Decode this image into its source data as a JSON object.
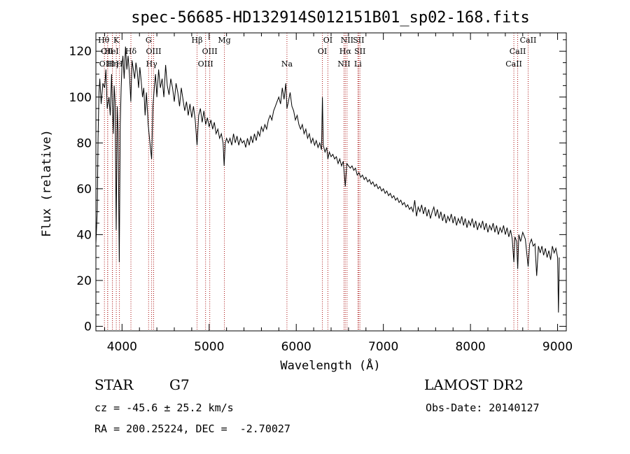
{
  "chart_data": {
    "type": "line",
    "title": "spec-56685-HD132914S012151B01_sp02-168.fits",
    "xlabel": "Wavelength (Å)",
    "ylabel": "Flux (relative)",
    "xlim": [
      3700,
      9100
    ],
    "ylim": [
      -2,
      128
    ],
    "xticks": [
      4000,
      5000,
      6000,
      7000,
      8000,
      9000
    ],
    "yticks": [
      0,
      20,
      40,
      60,
      80,
      100,
      120
    ],
    "line_color": "#000000",
    "marker_color": "#aa1111",
    "series": [
      {
        "points": [
          [
            3700,
            36
          ],
          [
            3715,
            50
          ],
          [
            3725,
            82
          ],
          [
            3735,
            102
          ],
          [
            3745,
            108
          ],
          [
            3760,
            97
          ],
          [
            3780,
            106
          ],
          [
            3800,
            104
          ],
          [
            3815,
            112
          ],
          [
            3830,
            95
          ],
          [
            3850,
            100
          ],
          [
            3865,
            92
          ],
          [
            3880,
            110
          ],
          [
            3890,
            96
          ],
          [
            3900,
            84
          ],
          [
            3910,
            105
          ],
          [
            3920,
            98
          ],
          [
            3933,
            42
          ],
          [
            3945,
            96
          ],
          [
            3955,
            85
          ],
          [
            3968,
            28
          ],
          [
            3980,
            88
          ],
          [
            3990,
            104
          ],
          [
            4000,
            114
          ],
          [
            4010,
            118
          ],
          [
            4025,
            108
          ],
          [
            4040,
            122
          ],
          [
            4055,
            112
          ],
          [
            4070,
            118
          ],
          [
            4085,
            110
          ],
          [
            4101,
            98
          ],
          [
            4115,
            116
          ],
          [
            4130,
            112
          ],
          [
            4145,
            108
          ],
          [
            4160,
            115
          ],
          [
            4175,
            111
          ],
          [
            4190,
            104
          ],
          [
            4205,
            113
          ],
          [
            4220,
            107
          ],
          [
            4235,
            100
          ],
          [
            4250,
            104
          ],
          [
            4265,
            92
          ],
          [
            4280,
            102
          ],
          [
            4300,
            88
          ],
          [
            4320,
            80
          ],
          [
            4340,
            73
          ],
          [
            4355,
            96
          ],
          [
            4370,
            104
          ],
          [
            4385,
            110
          ],
          [
            4400,
            100
          ],
          [
            4420,
            112
          ],
          [
            4440,
            104
          ],
          [
            4460,
            108
          ],
          [
            4480,
            100
          ],
          [
            4500,
            114
          ],
          [
            4520,
            105
          ],
          [
            4540,
            101
          ],
          [
            4560,
            108
          ],
          [
            4580,
            104
          ],
          [
            4600,
            98
          ],
          [
            4620,
            106
          ],
          [
            4640,
            102
          ],
          [
            4660,
            96
          ],
          [
            4680,
            104
          ],
          [
            4700,
            99
          ],
          [
            4720,
            94
          ],
          [
            4740,
            98
          ],
          [
            4760,
            92
          ],
          [
            4780,
            97
          ],
          [
            4800,
            91
          ],
          [
            4820,
            96
          ],
          [
            4840,
            90
          ],
          [
            4861,
            79
          ],
          [
            4880,
            92
          ],
          [
            4900,
            95
          ],
          [
            4920,
            89
          ],
          [
            4940,
            94
          ],
          [
            4960,
            88
          ],
          [
            4980,
            91
          ],
          [
            5000,
            87
          ],
          [
            5020,
            90
          ],
          [
            5040,
            86
          ],
          [
            5060,
            89
          ],
          [
            5080,
            84
          ],
          [
            5100,
            86
          ],
          [
            5120,
            82
          ],
          [
            5140,
            84
          ],
          [
            5160,
            80
          ],
          [
            5172,
            70
          ],
          [
            5185,
            80
          ],
          [
            5200,
            82
          ],
          [
            5220,
            80
          ],
          [
            5240,
            82
          ],
          [
            5260,
            79
          ],
          [
            5280,
            84
          ],
          [
            5300,
            80
          ],
          [
            5320,
            83
          ],
          [
            5340,
            79
          ],
          [
            5360,
            82
          ],
          [
            5380,
            80
          ],
          [
            5400,
            81
          ],
          [
            5420,
            78
          ],
          [
            5440,
            82
          ],
          [
            5460,
            79
          ],
          [
            5480,
            83
          ],
          [
            5500,
            80
          ],
          [
            5520,
            84
          ],
          [
            5540,
            81
          ],
          [
            5560,
            85
          ],
          [
            5580,
            83
          ],
          [
            5600,
            87
          ],
          [
            5620,
            85
          ],
          [
            5640,
            88
          ],
          [
            5660,
            86
          ],
          [
            5680,
            90
          ],
          [
            5700,
            92
          ],
          [
            5720,
            90
          ],
          [
            5740,
            94
          ],
          [
            5760,
            96
          ],
          [
            5780,
            98
          ],
          [
            5800,
            100
          ],
          [
            5820,
            97
          ],
          [
            5840,
            104
          ],
          [
            5860,
            99
          ],
          [
            5880,
            106
          ],
          [
            5893,
            95
          ],
          [
            5910,
            98
          ],
          [
            5930,
            102
          ],
          [
            5950,
            96
          ],
          [
            5970,
            94
          ],
          [
            5990,
            90
          ],
          [
            6010,
            92
          ],
          [
            6030,
            88
          ],
          [
            6050,
            86
          ],
          [
            6070,
            88
          ],
          [
            6090,
            84
          ],
          [
            6110,
            86
          ],
          [
            6130,
            82
          ],
          [
            6150,
            84
          ],
          [
            6170,
            80
          ],
          [
            6190,
            82
          ],
          [
            6210,
            79
          ],
          [
            6230,
            81
          ],
          [
            6250,
            78
          ],
          [
            6270,
            80
          ],
          [
            6290,
            77
          ],
          [
            6300,
            100
          ],
          [
            6310,
            79
          ],
          [
            6330,
            76
          ],
          [
            6350,
            78
          ],
          [
            6363,
            73
          ],
          [
            6380,
            76
          ],
          [
            6400,
            74
          ],
          [
            6420,
            75
          ],
          [
            6440,
            73
          ],
          [
            6460,
            74
          ],
          [
            6480,
            71
          ],
          [
            6500,
            73
          ],
          [
            6520,
            70
          ],
          [
            6540,
            72
          ],
          [
            6563,
            61
          ],
          [
            6580,
            71
          ],
          [
            6600,
            70
          ],
          [
            6620,
            69
          ],
          [
            6640,
            70
          ],
          [
            6660,
            68
          ],
          [
            6680,
            69
          ],
          [
            6700,
            66
          ],
          [
            6720,
            67
          ],
          [
            6740,
            65
          ],
          [
            6760,
            66
          ],
          [
            6780,
            64
          ],
          [
            6800,
            65
          ],
          [
            6820,
            63
          ],
          [
            6840,
            64
          ],
          [
            6860,
            62
          ],
          [
            6880,
            63
          ],
          [
            6900,
            61
          ],
          [
            6920,
            62
          ],
          [
            6940,
            60
          ],
          [
            6960,
            61
          ],
          [
            6980,
            59
          ],
          [
            7000,
            60
          ],
          [
            7020,
            58
          ],
          [
            7040,
            59
          ],
          [
            7060,
            57
          ],
          [
            7080,
            58
          ],
          [
            7100,
            56
          ],
          [
            7120,
            57
          ],
          [
            7140,
            55
          ],
          [
            7160,
            56
          ],
          [
            7180,
            54
          ],
          [
            7200,
            55
          ],
          [
            7220,
            53
          ],
          [
            7240,
            54
          ],
          [
            7260,
            52
          ],
          [
            7280,
            53
          ],
          [
            7300,
            51
          ],
          [
            7320,
            52
          ],
          [
            7340,
            50
          ],
          [
            7360,
            55
          ],
          [
            7380,
            48
          ],
          [
            7400,
            52
          ],
          [
            7420,
            50
          ],
          [
            7440,
            53
          ],
          [
            7460,
            49
          ],
          [
            7480,
            52
          ],
          [
            7500,
            48
          ],
          [
            7520,
            51
          ],
          [
            7540,
            47
          ],
          [
            7560,
            50
          ],
          [
            7580,
            52
          ],
          [
            7600,
            48
          ],
          [
            7620,
            51
          ],
          [
            7640,
            47
          ],
          [
            7660,
            50
          ],
          [
            7680,
            46
          ],
          [
            7700,
            49
          ],
          [
            7720,
            45
          ],
          [
            7740,
            48
          ],
          [
            7760,
            46
          ],
          [
            7780,
            49
          ],
          [
            7800,
            45
          ],
          [
            7820,
            48
          ],
          [
            7840,
            44
          ],
          [
            7860,
            47
          ],
          [
            7880,
            45
          ],
          [
            7900,
            48
          ],
          [
            7920,
            44
          ],
          [
            7940,
            47
          ],
          [
            7960,
            43
          ],
          [
            7980,
            46
          ],
          [
            8000,
            44
          ],
          [
            8020,
            47
          ],
          [
            8040,
            43
          ],
          [
            8060,
            46
          ],
          [
            8080,
            42
          ],
          [
            8100,
            45
          ],
          [
            8120,
            43
          ],
          [
            8140,
            46
          ],
          [
            8160,
            42
          ],
          [
            8180,
            45
          ],
          [
            8200,
            41
          ],
          [
            8220,
            44
          ],
          [
            8240,
            42
          ],
          [
            8260,
            45
          ],
          [
            8280,
            41
          ],
          [
            8300,
            44
          ],
          [
            8320,
            40
          ],
          [
            8340,
            43
          ],
          [
            8360,
            41
          ],
          [
            8380,
            44
          ],
          [
            8400,
            40
          ],
          [
            8420,
            43
          ],
          [
            8440,
            39
          ],
          [
            8460,
            42
          ],
          [
            8480,
            38
          ],
          [
            8498,
            28
          ],
          [
            8510,
            39
          ],
          [
            8530,
            37
          ],
          [
            8542,
            25
          ],
          [
            8555,
            40
          ],
          [
            8575,
            37
          ],
          [
            8600,
            41
          ],
          [
            8630,
            38
          ],
          [
            8662,
            26
          ],
          [
            8680,
            36
          ],
          [
            8700,
            38
          ],
          [
            8720,
            35
          ],
          [
            8740,
            36
          ],
          [
            8760,
            22
          ],
          [
            8780,
            35
          ],
          [
            8800,
            32
          ],
          [
            8820,
            35
          ],
          [
            8840,
            31
          ],
          [
            8860,
            34
          ],
          [
            8880,
            30
          ],
          [
            8900,
            33
          ],
          [
            8920,
            29
          ],
          [
            8940,
            35
          ],
          [
            8960,
            32
          ],
          [
            8980,
            34
          ],
          [
            9000,
            30
          ],
          [
            9010,
            6
          ],
          [
            9020,
            30
          ]
        ]
      }
    ],
    "line_markers": [
      {
        "w": 3798,
        "label": "Hθ",
        "row": 0,
        "dx": -1
      },
      {
        "w": 3835,
        "label": "OII",
        "row": 1,
        "dx": -1
      },
      {
        "w": 3835,
        "label": "OIII",
        "row": 2,
        "dx": -1
      },
      {
        "w": 3889,
        "label": "HeI",
        "row": 1,
        "dx": -1
      },
      {
        "w": 3890,
        "label": "Hη",
        "row": 2,
        "dx": 0
      },
      {
        "w": 3934,
        "label": "K",
        "row": 0,
        "dx": 0
      },
      {
        "w": 3970,
        "label": "H",
        "row": 2,
        "dx": 0
      },
      {
        "w": 4102,
        "label": "Hδ",
        "row": 1,
        "dx": 0
      },
      {
        "w": 4305,
        "label": "G",
        "row": 0,
        "dx": 0
      },
      {
        "w": 4340,
        "label": "Hγ",
        "row": 2,
        "dx": 0
      },
      {
        "w": 4363,
        "label": "OIII",
        "row": 1,
        "dx": 0
      },
      {
        "w": 4861,
        "label": "Hβ",
        "row": 0,
        "dx": 0
      },
      {
        "w": 4959,
        "label": "OIII",
        "row": 2,
        "dx": 0
      },
      {
        "w": 5007,
        "label": "OIII",
        "row": 1,
        "dx": 0
      },
      {
        "w": 5175,
        "label": "Mg",
        "row": 0,
        "dx": 0
      },
      {
        "w": 5893,
        "label": "Na",
        "row": 2,
        "dx": 0
      },
      {
        "w": 6300,
        "label": "OI",
        "row": 1,
        "dx": 0
      },
      {
        "w": 6363,
        "label": "OI",
        "row": 0,
        "dx": 0
      },
      {
        "w": 6548,
        "label": "NII",
        "row": 2,
        "dx": 0
      },
      {
        "w": 6563,
        "label": "Hα",
        "row": 1,
        "dx": 0
      },
      {
        "w": 6583,
        "label": "NII",
        "row": 0,
        "dx": 0
      },
      {
        "w": 6708,
        "label": "Li",
        "row": 2,
        "dx": 0
      },
      {
        "w": 6716,
        "label": "SII",
        "row": 0,
        "dx": 0
      },
      {
        "w": 6731,
        "label": "SII",
        "row": 1,
        "dx": 0
      },
      {
        "w": 8498,
        "label": "CaII",
        "row": 2,
        "dx": 0
      },
      {
        "w": 8542,
        "label": "CaII",
        "row": 1,
        "dx": 0
      },
      {
        "w": 8662,
        "label": "CaII",
        "row": 0,
        "dx": 0
      }
    ]
  },
  "info": {
    "object_class": "STAR",
    "subclass": "G7",
    "survey": "LAMOST DR2",
    "redshift": "cz = -45.6 ± 25.2 km/s",
    "obs_date": "Obs-Date: 20140127",
    "coords": "RA = 200.25224, DEC =  -2.70027"
  }
}
